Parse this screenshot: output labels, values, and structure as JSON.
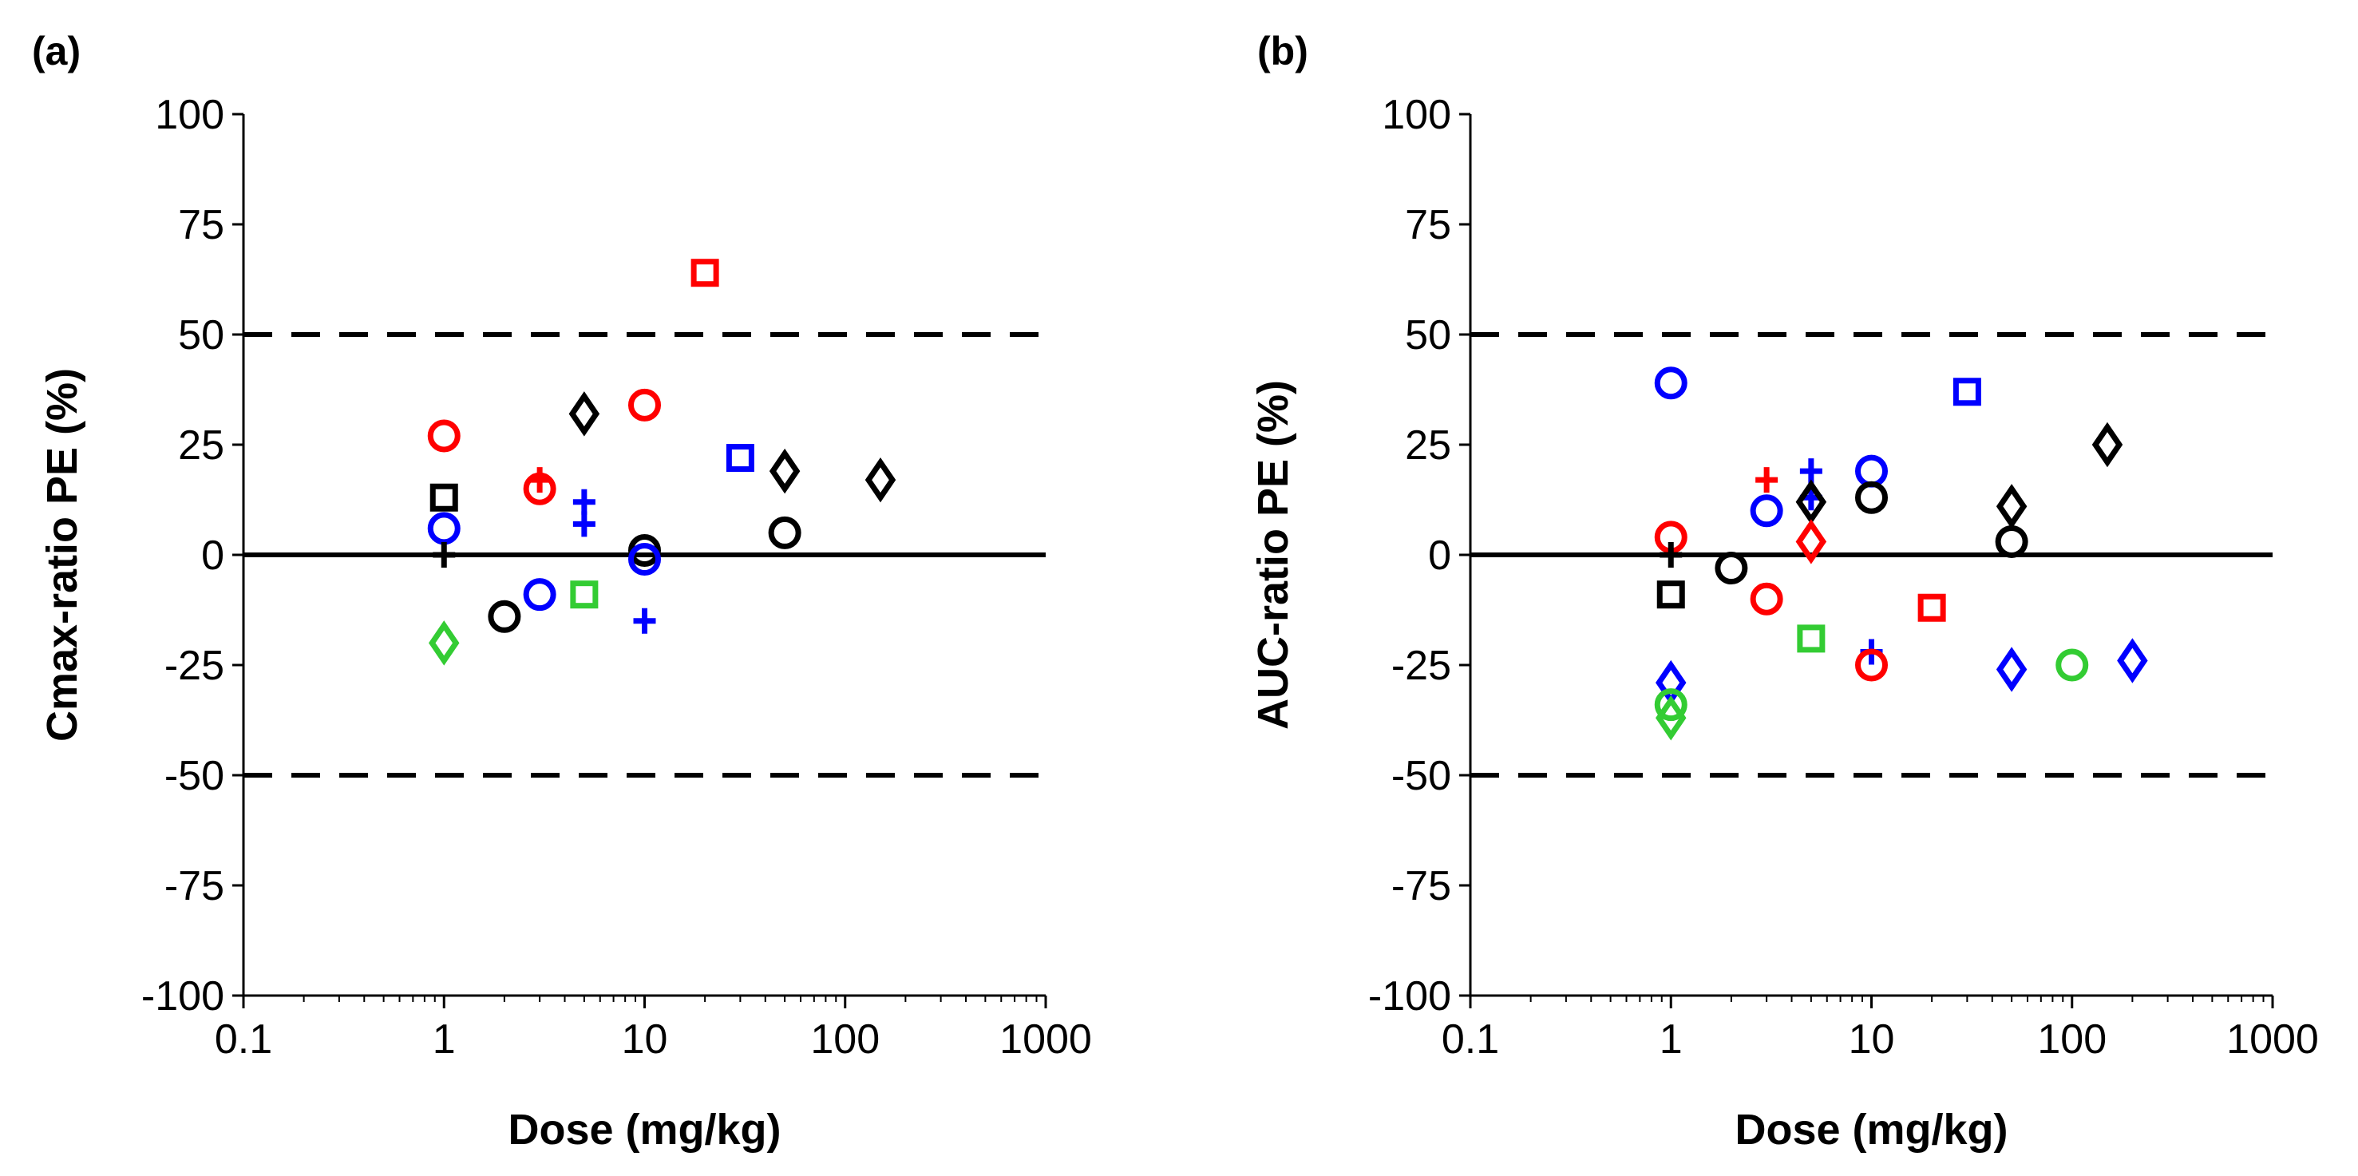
{
  "chart_data": [
    {
      "panel_label": "(a)",
      "type": "scatter",
      "xscale": "log",
      "xlim": [
        0.1,
        1000
      ],
      "ylim": [
        -100,
        100
      ],
      "xlabel": "Dose (mg/kg)",
      "ylabel": "Cmax-ratio PE (%)",
      "x_ticks": [
        "0.1",
        "1",
        "10",
        "100",
        "1000"
      ],
      "y_ticks": [
        "100",
        "75",
        "50",
        "25",
        "0",
        "-25",
        "-50",
        "-75",
        "-100"
      ],
      "reference_lines": [
        {
          "y": 50,
          "style": "dashed"
        },
        {
          "y": 0,
          "style": "solid"
        },
        {
          "y": -50,
          "style": "dashed"
        }
      ],
      "points": [
        {
          "x": 1,
          "y": 27,
          "marker": "circle",
          "color": "#ff0000"
        },
        {
          "x": 1,
          "y": 13,
          "marker": "square",
          "color": "#000000"
        },
        {
          "x": 1,
          "y": 6,
          "marker": "circle",
          "color": "#0000ff"
        },
        {
          "x": 1,
          "y": 0,
          "marker": "plus",
          "color": "#000000"
        },
        {
          "x": 1,
          "y": -20,
          "marker": "diamond",
          "color": "#33cc33"
        },
        {
          "x": 2,
          "y": -14,
          "marker": "circle",
          "color": "#000000"
        },
        {
          "x": 3,
          "y": 15,
          "marker": "circle",
          "color": "#ff0000"
        },
        {
          "x": 3,
          "y": 17,
          "marker": "plus",
          "color": "#ff0000"
        },
        {
          "x": 3,
          "y": -9,
          "marker": "circle",
          "color": "#0000ff"
        },
        {
          "x": 5,
          "y": 32,
          "marker": "diamond",
          "color": "#000000"
        },
        {
          "x": 5,
          "y": 12,
          "marker": "plus",
          "color": "#0000ff"
        },
        {
          "x": 5,
          "y": 7,
          "marker": "plus",
          "color": "#0000ff"
        },
        {
          "x": 5,
          "y": -9,
          "marker": "square",
          "color": "#33cc33"
        },
        {
          "x": 10,
          "y": 34,
          "marker": "circle",
          "color": "#ff0000"
        },
        {
          "x": 10,
          "y": 1,
          "marker": "circle",
          "color": "#000000"
        },
        {
          "x": 10,
          "y": -1,
          "marker": "circle",
          "color": "#0000ff"
        },
        {
          "x": 10,
          "y": -15,
          "marker": "plus",
          "color": "#0000ff"
        },
        {
          "x": 20,
          "y": 64,
          "marker": "square",
          "color": "#ff0000"
        },
        {
          "x": 30,
          "y": 22,
          "marker": "square",
          "color": "#0000ff"
        },
        {
          "x": 50,
          "y": 19,
          "marker": "diamond",
          "color": "#000000"
        },
        {
          "x": 50,
          "y": 5,
          "marker": "circle",
          "color": "#000000"
        },
        {
          "x": 150,
          "y": 17,
          "marker": "diamond",
          "color": "#000000"
        }
      ]
    },
    {
      "panel_label": "(b)",
      "type": "scatter",
      "xscale": "log",
      "xlim": [
        0.1,
        1000
      ],
      "ylim": [
        -100,
        100
      ],
      "xlabel": "Dose (mg/kg)",
      "ylabel": "AUC-ratio PE (%)",
      "x_ticks": [
        "0.1",
        "1",
        "10",
        "100",
        "1000"
      ],
      "y_ticks": [
        "100",
        "75",
        "50",
        "25",
        "0",
        "-25",
        "-50",
        "-75",
        "-100"
      ],
      "reference_lines": [
        {
          "y": 50,
          "style": "dashed"
        },
        {
          "y": 0,
          "style": "solid"
        },
        {
          "y": -50,
          "style": "dashed"
        }
      ],
      "points": [
        {
          "x": 1,
          "y": 39,
          "marker": "circle",
          "color": "#0000ff"
        },
        {
          "x": 1,
          "y": 4,
          "marker": "circle",
          "color": "#ff0000"
        },
        {
          "x": 1,
          "y": 0,
          "marker": "plus",
          "color": "#000000"
        },
        {
          "x": 1,
          "y": -9,
          "marker": "square",
          "color": "#000000"
        },
        {
          "x": 1,
          "y": -29,
          "marker": "diamond",
          "color": "#0000ff"
        },
        {
          "x": 1,
          "y": -34,
          "marker": "circle",
          "color": "#33cc33"
        },
        {
          "x": 1,
          "y": -37,
          "marker": "diamond",
          "color": "#33cc33"
        },
        {
          "x": 2,
          "y": -3,
          "marker": "circle",
          "color": "#000000"
        },
        {
          "x": 3,
          "y": 17,
          "marker": "plus",
          "color": "#ff0000"
        },
        {
          "x": 3,
          "y": 10,
          "marker": "circle",
          "color": "#0000ff"
        },
        {
          "x": 3,
          "y": -10,
          "marker": "circle",
          "color": "#ff0000"
        },
        {
          "x": 5,
          "y": 19,
          "marker": "plus",
          "color": "#0000ff"
        },
        {
          "x": 5,
          "y": 13,
          "marker": "plus",
          "color": "#0000ff"
        },
        {
          "x": 5,
          "y": 12,
          "marker": "diamond",
          "color": "#000000"
        },
        {
          "x": 5,
          "y": 3,
          "marker": "diamond",
          "color": "#ff0000"
        },
        {
          "x": 5,
          "y": -19,
          "marker": "square",
          "color": "#33cc33"
        },
        {
          "x": 10,
          "y": 19,
          "marker": "circle",
          "color": "#0000ff"
        },
        {
          "x": 10,
          "y": 13,
          "marker": "circle",
          "color": "#000000"
        },
        {
          "x": 10,
          "y": -22,
          "marker": "plus",
          "color": "#0000ff"
        },
        {
          "x": 10,
          "y": -25,
          "marker": "circle",
          "color": "#ff0000"
        },
        {
          "x": 20,
          "y": -12,
          "marker": "square",
          "color": "#ff0000"
        },
        {
          "x": 30,
          "y": 37,
          "marker": "square",
          "color": "#0000ff"
        },
        {
          "x": 50,
          "y": 11,
          "marker": "diamond",
          "color": "#000000"
        },
        {
          "x": 50,
          "y": 3,
          "marker": "circle",
          "color": "#000000"
        },
        {
          "x": 50,
          "y": -26,
          "marker": "diamond",
          "color": "#0000ff"
        },
        {
          "x": 100,
          "y": -25,
          "marker": "circle",
          "color": "#33cc33"
        },
        {
          "x": 150,
          "y": 25,
          "marker": "diamond",
          "color": "#000000"
        },
        {
          "x": 200,
          "y": -24,
          "marker": "diamond",
          "color": "#0000ff"
        }
      ]
    }
  ]
}
